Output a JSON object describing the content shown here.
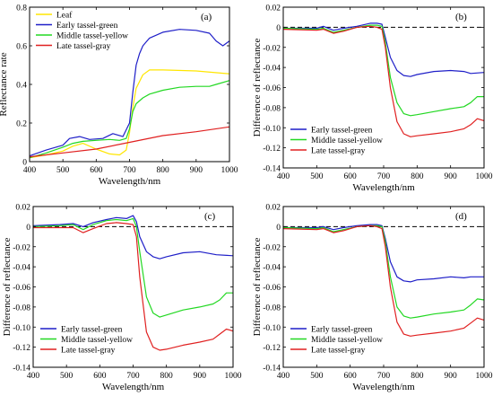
{
  "chart_data": [
    {
      "id": "a",
      "type": "line",
      "panel_label": "(a)",
      "title": "",
      "xlabel": "Wavelength/nm",
      "ylabel": "Reflectance rate",
      "xlim": [
        400,
        1000
      ],
      "ylim": [
        0,
        0.8
      ],
      "xticks": [
        400,
        500,
        600,
        700,
        800,
        900,
        1000
      ],
      "yticks": [
        0,
        0.2,
        0.4,
        0.6,
        0.8
      ],
      "ytick_labels": [
        "0",
        "0.2",
        "0.4",
        "0.6",
        "0.8"
      ],
      "zero_line": false,
      "legend_position": "top-left",
      "grid": false,
      "series": [
        {
          "name": "Leaf",
          "color": "#ffe600",
          "x": [
            400,
            450,
            500,
            530,
            560,
            600,
            640,
            670,
            690,
            700,
            710,
            720,
            740,
            760,
            800,
            900,
            1000
          ],
          "y": [
            0.02,
            0.035,
            0.055,
            0.08,
            0.095,
            0.065,
            0.04,
            0.035,
            0.06,
            0.15,
            0.28,
            0.38,
            0.45,
            0.475,
            0.475,
            0.47,
            0.455
          ]
        },
        {
          "name": "Early tassel-green",
          "color": "#1f1fc8",
          "x": [
            400,
            450,
            500,
            520,
            550,
            580,
            620,
            650,
            680,
            700,
            710,
            720,
            730,
            740,
            760,
            800,
            850,
            900,
            940,
            960,
            980,
            1000
          ],
          "y": [
            0.03,
            0.06,
            0.085,
            0.12,
            0.13,
            0.115,
            0.12,
            0.145,
            0.13,
            0.2,
            0.36,
            0.5,
            0.56,
            0.6,
            0.64,
            0.67,
            0.685,
            0.68,
            0.665,
            0.625,
            0.6,
            0.625
          ]
        },
        {
          "name": "Middle tassel-yellow",
          "color": "#22d822",
          "x": [
            400,
            450,
            500,
            530,
            560,
            600,
            640,
            670,
            690,
            700,
            710,
            720,
            740,
            760,
            800,
            850,
            900,
            940,
            960,
            1000
          ],
          "y": [
            0.02,
            0.045,
            0.075,
            0.095,
            0.105,
            0.11,
            0.115,
            0.11,
            0.12,
            0.17,
            0.26,
            0.3,
            0.33,
            0.35,
            0.37,
            0.385,
            0.39,
            0.39,
            0.4,
            0.42
          ]
        },
        {
          "name": "Late tassel-gray",
          "color": "#e02020",
          "x": [
            400,
            500,
            600,
            700,
            800,
            900,
            1000
          ],
          "y": [
            0.025,
            0.045,
            0.065,
            0.1,
            0.135,
            0.155,
            0.18
          ]
        }
      ]
    },
    {
      "id": "b",
      "type": "line",
      "panel_label": "(b)",
      "title": "",
      "xlabel": "Wavelength/nm",
      "ylabel": "Difference of reflectance",
      "xlim": [
        400,
        1000
      ],
      "ylim": [
        -0.14,
        0.02
      ],
      "xticks": [
        400,
        500,
        600,
        700,
        800,
        900,
        1000
      ],
      "yticks": [
        0.02,
        0,
        -0.02,
        -0.04,
        -0.06,
        -0.08,
        -0.1,
        -0.12,
        -0.14
      ],
      "ytick_labels": [
        "0.02",
        "0",
        "-0.02",
        "-0.04",
        "-0.06",
        "-0.08",
        "-0.10",
        "-0.12",
        "-0.14"
      ],
      "zero_line": true,
      "legend_position": "bottom-left",
      "grid": false,
      "series": [
        {
          "name": "Early tassel-green",
          "color": "#1f1fc8",
          "x": [
            400,
            500,
            520,
            550,
            580,
            620,
            660,
            680,
            695,
            705,
            720,
            740,
            760,
            780,
            800,
            850,
            900,
            940,
            960,
            1000
          ],
          "y": [
            -0.001,
            -0.001,
            0.001,
            -0.003,
            -0.001,
            0.001,
            0.004,
            0.004,
            0.003,
            -0.01,
            -0.03,
            -0.043,
            -0.048,
            -0.049,
            -0.047,
            -0.044,
            -0.043,
            -0.044,
            -0.046,
            -0.045
          ]
        },
        {
          "name": "Middle tassel-yellow",
          "color": "#22d822",
          "x": [
            400,
            500,
            520,
            550,
            580,
            620,
            660,
            680,
            695,
            705,
            720,
            740,
            760,
            780,
            800,
            850,
            900,
            940,
            960,
            980,
            1000
          ],
          "y": [
            -0.001,
            -0.002,
            -0.001,
            -0.005,
            -0.003,
            0.0,
            0.002,
            0.002,
            0.001,
            -0.015,
            -0.05,
            -0.075,
            -0.086,
            -0.088,
            -0.087,
            -0.084,
            -0.081,
            -0.079,
            -0.075,
            -0.069,
            -0.069
          ]
        },
        {
          "name": "Late tassel-gray",
          "color": "#e02020",
          "x": [
            400,
            500,
            520,
            550,
            580,
            620,
            660,
            680,
            695,
            705,
            720,
            740,
            760,
            780,
            800,
            850,
            900,
            940,
            960,
            980,
            1000
          ],
          "y": [
            -0.002,
            -0.003,
            -0.002,
            -0.006,
            -0.004,
            0.0,
            0.001,
            0.0,
            -0.002,
            -0.02,
            -0.06,
            -0.094,
            -0.106,
            -0.109,
            -0.108,
            -0.106,
            -0.104,
            -0.101,
            -0.097,
            -0.091,
            -0.093
          ]
        }
      ]
    },
    {
      "id": "c",
      "type": "line",
      "panel_label": "(c)",
      "title": "",
      "xlabel": "Wavelength/nm",
      "ylabel": "Difference of reflectance",
      "xlim": [
        400,
        1000
      ],
      "ylim": [
        -0.14,
        0.02
      ],
      "xticks": [
        400,
        500,
        600,
        700,
        800,
        900,
        1000
      ],
      "yticks": [
        0.02,
        0,
        -0.02,
        -0.04,
        -0.06,
        -0.08,
        -0.1,
        -0.12,
        -0.14
      ],
      "ytick_labels": [
        "0.02",
        "0",
        "-0.02",
        "-0.04",
        "-0.06",
        "-0.08",
        "-0.10",
        "-0.12",
        "-0.14"
      ],
      "zero_line": true,
      "legend_position": "bottom-left",
      "grid": false,
      "series": [
        {
          "name": "Early tassel-green",
          "color": "#1f1fc8",
          "x": [
            400,
            480,
            520,
            550,
            580,
            620,
            650,
            680,
            700,
            710,
            720,
            740,
            760,
            780,
            800,
            850,
            900,
            950,
            1000
          ],
          "y": [
            0.001,
            0.002,
            0.003,
            0.0,
            0.004,
            0.007,
            0.009,
            0.008,
            0.011,
            0.005,
            -0.01,
            -0.025,
            -0.03,
            -0.032,
            -0.03,
            -0.026,
            -0.025,
            -0.028,
            -0.029
          ]
        },
        {
          "name": "Middle tassel-yellow",
          "color": "#22d822",
          "x": [
            400,
            480,
            520,
            550,
            580,
            620,
            650,
            680,
            700,
            710,
            720,
            740,
            760,
            780,
            800,
            850,
            900,
            940,
            960,
            980,
            1000
          ],
          "y": [
            0.0,
            0.001,
            0.002,
            -0.003,
            0.002,
            0.006,
            0.007,
            0.006,
            0.008,
            0.0,
            -0.025,
            -0.07,
            -0.086,
            -0.09,
            -0.088,
            -0.083,
            -0.08,
            -0.077,
            -0.073,
            -0.066,
            -0.066
          ]
        },
        {
          "name": "Late tassel-gray",
          "color": "#e02020",
          "x": [
            400,
            480,
            520,
            550,
            580,
            620,
            650,
            680,
            700,
            710,
            720,
            740,
            760,
            780,
            800,
            850,
            900,
            940,
            960,
            980,
            1000
          ],
          "y": [
            -0.001,
            -0.001,
            -0.001,
            -0.006,
            -0.002,
            0.003,
            0.004,
            0.003,
            0.002,
            -0.01,
            -0.05,
            -0.105,
            -0.12,
            -0.123,
            -0.122,
            -0.118,
            -0.115,
            -0.112,
            -0.107,
            -0.102,
            -0.104
          ]
        }
      ]
    },
    {
      "id": "d",
      "type": "line",
      "panel_label": "(d)",
      "title": "",
      "xlabel": "Wavelength/nm",
      "ylabel": "Difference of reflectance",
      "xlim": [
        400,
        1000
      ],
      "ylim": [
        -0.14,
        0.02
      ],
      "xticks": [
        400,
        500,
        600,
        700,
        800,
        900,
        1000
      ],
      "yticks": [
        0.02,
        0,
        -0.02,
        -0.04,
        -0.06,
        -0.08,
        -0.1,
        -0.12,
        -0.14
      ],
      "ytick_labels": [
        "0.02",
        "0",
        "-0.02",
        "-0.04",
        "-0.06",
        "-0.08",
        "-0.10",
        "-0.12",
        "-0.14"
      ],
      "zero_line": true,
      "legend_position": "bottom-left",
      "grid": false,
      "series": [
        {
          "name": "Early tassel-green",
          "color": "#1f1fc8",
          "x": [
            400,
            500,
            520,
            550,
            580,
            620,
            660,
            680,
            695,
            705,
            720,
            740,
            760,
            780,
            800,
            850,
            900,
            940,
            960,
            1000
          ],
          "y": [
            -0.001,
            -0.001,
            0.0,
            -0.003,
            -0.001,
            0.001,
            0.002,
            0.002,
            0.001,
            -0.012,
            -0.035,
            -0.05,
            -0.054,
            -0.055,
            -0.053,
            -0.052,
            -0.05,
            -0.051,
            -0.05,
            -0.05
          ]
        },
        {
          "name": "Middle tassel-yellow",
          "color": "#22d822",
          "x": [
            400,
            500,
            520,
            550,
            580,
            620,
            660,
            680,
            695,
            705,
            720,
            740,
            760,
            780,
            800,
            850,
            900,
            940,
            960,
            980,
            1000
          ],
          "y": [
            -0.001,
            -0.002,
            -0.001,
            -0.005,
            -0.003,
            0.0,
            0.001,
            0.001,
            0.0,
            -0.015,
            -0.05,
            -0.08,
            -0.089,
            -0.091,
            -0.09,
            -0.087,
            -0.085,
            -0.083,
            -0.078,
            -0.072,
            -0.073
          ]
        },
        {
          "name": "Late tassel-gray",
          "color": "#e02020",
          "x": [
            400,
            500,
            520,
            550,
            580,
            620,
            660,
            680,
            695,
            705,
            720,
            740,
            760,
            780,
            800,
            850,
            900,
            940,
            960,
            980,
            1000
          ],
          "y": [
            -0.002,
            -0.003,
            -0.002,
            -0.006,
            -0.004,
            0.0,
            0.001,
            0.0,
            -0.002,
            -0.02,
            -0.06,
            -0.095,
            -0.107,
            -0.109,
            -0.108,
            -0.106,
            -0.104,
            -0.101,
            -0.096,
            -0.091,
            -0.093
          ]
        }
      ]
    }
  ]
}
